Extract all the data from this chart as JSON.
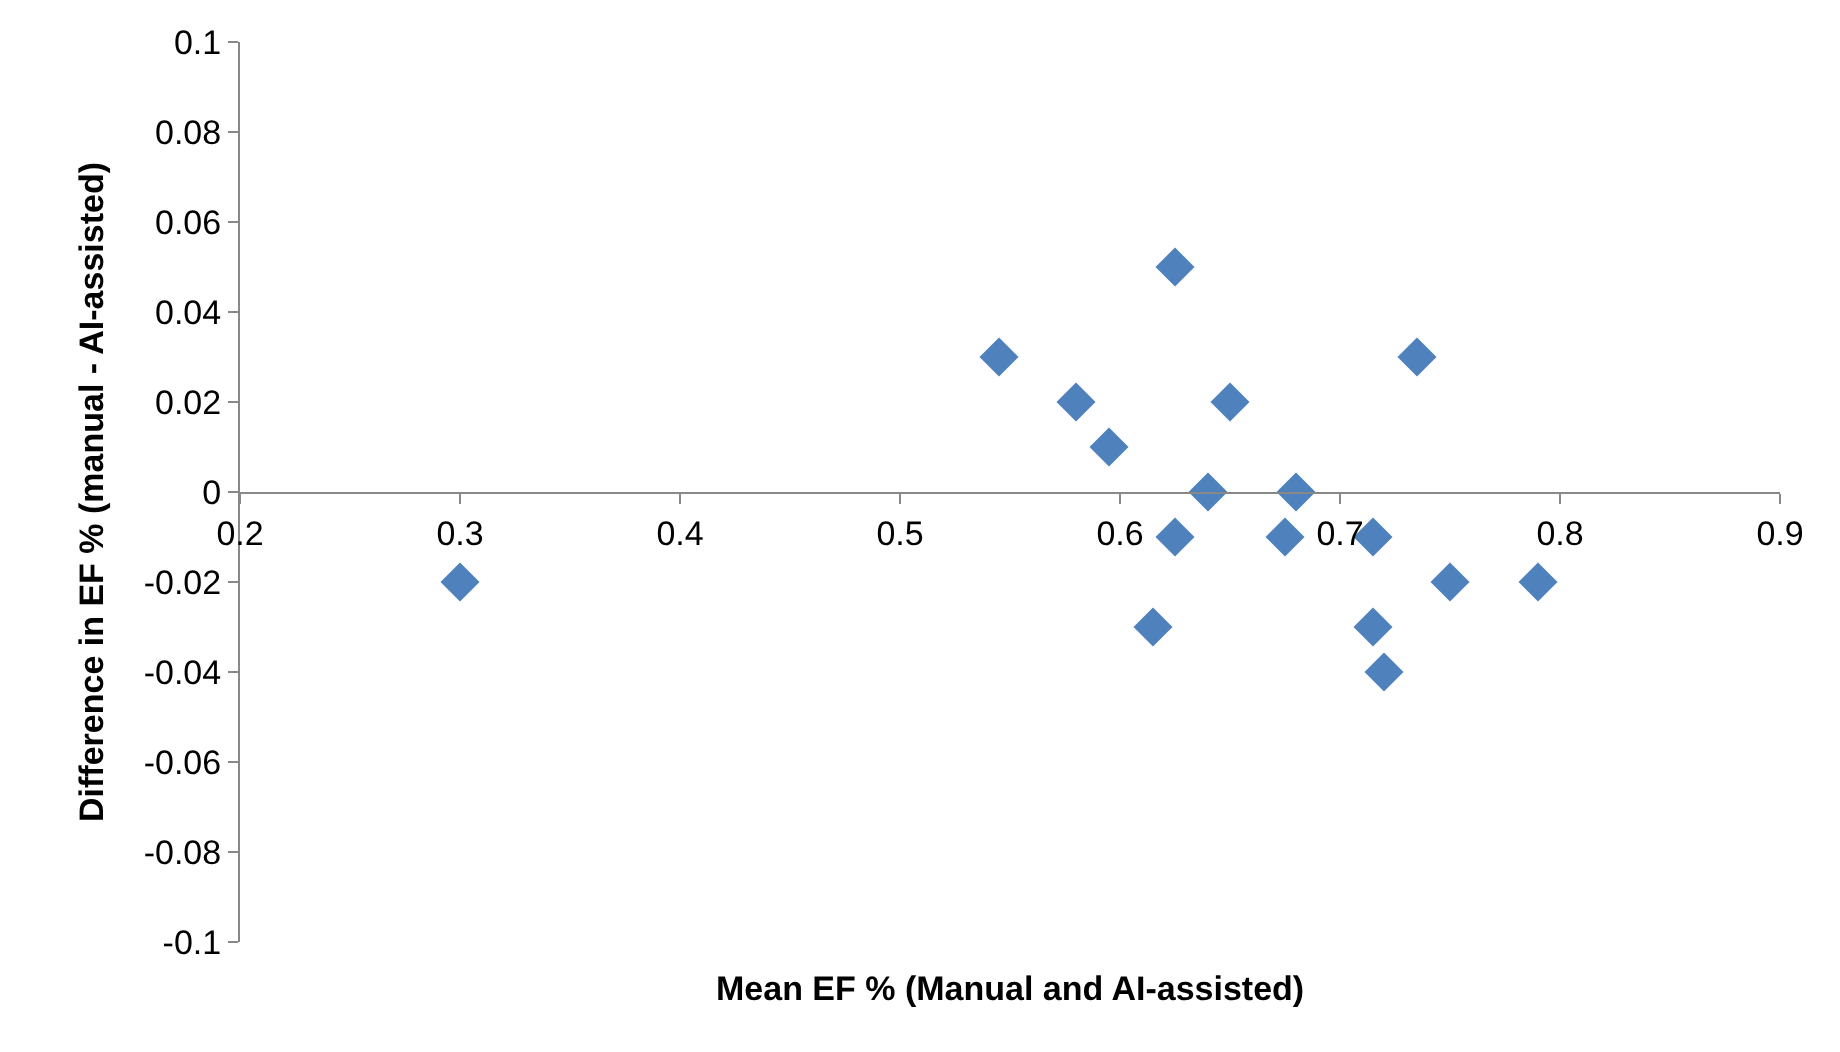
{
  "chart_data": {
    "type": "scatter",
    "xlabel": "Mean EF % (Manual and AI-assisted)",
    "ylabel": "Difference in EF % (manual - AI-assisted)",
    "x": [
      0.3,
      0.545,
      0.58,
      0.595,
      0.615,
      0.625,
      0.625,
      0.64,
      0.65,
      0.675,
      0.68,
      0.715,
      0.715,
      0.72,
      0.735,
      0.75,
      0.79
    ],
    "series": [
      {
        "color": "#4f81bd",
        "values": [
          -0.02,
          0.03,
          0.02,
          0.01,
          -0.03,
          -0.01,
          0.05,
          0,
          0.02,
          -0.01,
          0,
          -0.01,
          -0.03,
          -0.04,
          0.03,
          -0.02,
          -0.02
        ]
      }
    ],
    "xlim": [
      0.2,
      0.9
    ],
    "xticks": [
      0.2,
      0.3,
      0.4,
      0.5,
      0.6,
      0.7,
      0.8,
      0.9
    ],
    "ylim": [
      -0.1,
      0.1
    ],
    "yticks": [
      -0.1,
      -0.08,
      -0.06,
      -0.04,
      -0.02,
      0,
      0.02,
      0.04,
      0.06,
      0.08,
      0.1
    ],
    "marker": "diamond"
  }
}
